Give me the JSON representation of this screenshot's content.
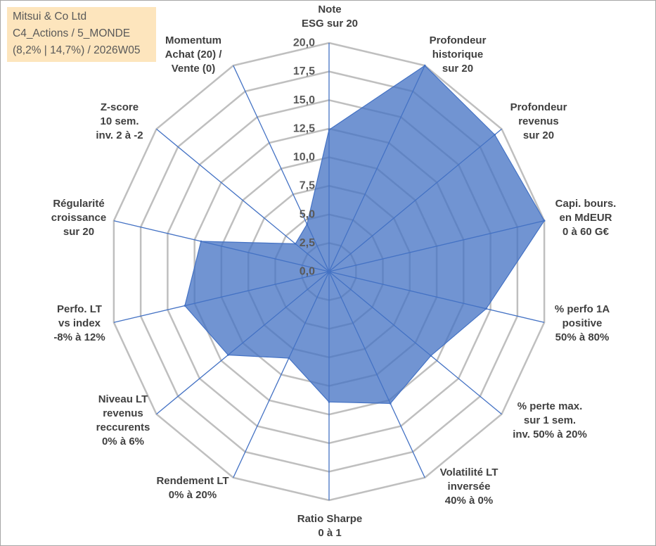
{
  "chart_data": {
    "type": "area",
    "polar": true,
    "title_lines": [
      "Mitsui & Co Ltd",
      "C4_Actions / 5_MONDE",
      "(8,2% | 14,7%) / 2026W05"
    ],
    "categories": [
      "Note\nESG sur 20",
      "Profondeur\nhistorique\nsur 20",
      "Profondeur\nrevenus\nsur 20",
      "Capi. bours.\nen MdEUR\n0 à 60 G€",
      "% perfo 1A\npositive\n50% à 80%",
      "% perte max.\nsur 1 sem.\ninv. 50% à 20%",
      "Volatilité LT\ninversée\n40% à 0%",
      "Ratio Sharpe\n0 à 1",
      "Rendement LT\n0% à 20%",
      "Niveau LT\nrevenus\nreccurents\n0% à 6%",
      "Perfo. LT\nvs index\n-8% à 12%",
      "Régularité\ncroissance\nsur 20",
      "Z-score\n10 sem.\ninv. 2 à -2",
      "Momentum\nAchat (20) /\nVente (0)"
    ],
    "values": [
      12.4,
      20.0,
      19.2,
      20.0,
      14.6,
      11.8,
      12.8,
      11.4,
      8.4,
      11.7,
      13.4,
      11.9,
      3.9,
      4.6
    ],
    "ylim": [
      0,
      20
    ],
    "ticks": [
      0,
      2.5,
      5,
      7.5,
      10,
      12.5,
      15,
      17.5,
      20
    ],
    "tick_labels": [
      "0,0",
      "2,5",
      "5,0",
      "7,5",
      "10,0",
      "12,5",
      "15,0",
      "17,5",
      "20,0"
    ],
    "grid": true,
    "legend": "none"
  },
  "colors": {
    "series": "#4472C4",
    "spokes": "#4472C4",
    "grid": "#BFBFBF",
    "title_box_background": "#FDE5BD",
    "title_text": "#595959",
    "axis_label_text": "#404040",
    "tick_label_text": "#595959"
  }
}
